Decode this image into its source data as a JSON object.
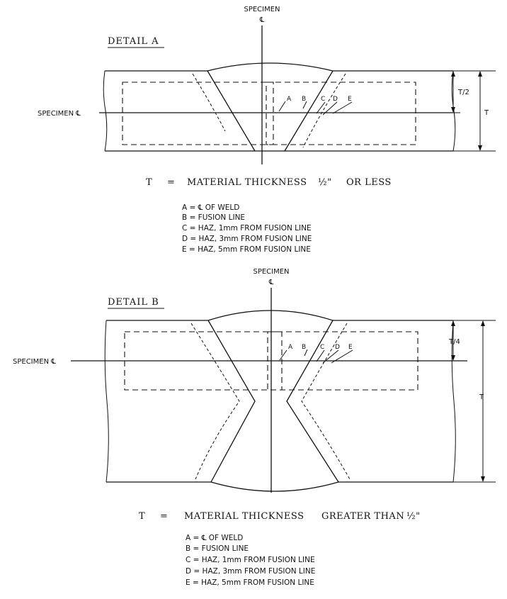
{
  "detail_a": {
    "title": "DETAIL A",
    "specimen_top": "SPECIMEN",
    "specimen_cl_symbol": "℄",
    "specimen_side_label": "SPECIMEN ℄",
    "points": [
      "A",
      "B",
      "C",
      "D",
      "E"
    ],
    "dim_half": "T/2",
    "dim_full": "T",
    "caption_parts": [
      "T",
      "=",
      "MATERIAL THICKNESS",
      "½\"",
      "OR LESS"
    ],
    "legend": [
      "A = ℄ OF WELD",
      "B = FUSION LINE",
      "C = HAZ, 1mm FROM FUSION LINE",
      "D = HAZ, 3mm FROM FUSION LINE",
      "E = HAZ, 5mm FROM FUSION LINE"
    ]
  },
  "detail_b": {
    "title": "DETAIL B",
    "specimen_top": "SPECIMEN",
    "specimen_cl_symbol": "℄",
    "specimen_side_label": "SPECIMEN ℄",
    "points": [
      "A",
      "B",
      "C",
      "D",
      "E"
    ],
    "dim_quarter": "T/4",
    "dim_full": "T",
    "caption_parts": [
      "T",
      "=",
      "MATERIAL THICKNESS",
      "GREATER THAN",
      "½\""
    ],
    "legend": [
      "A = ℄ OF WELD",
      "B = FUSION LINE",
      "C = HAZ, 1mm FROM FUSION LINE",
      "D = HAZ, 3mm FROM FUSION LINE",
      "E = HAZ, 5mm FROM FUSION LINE"
    ]
  }
}
